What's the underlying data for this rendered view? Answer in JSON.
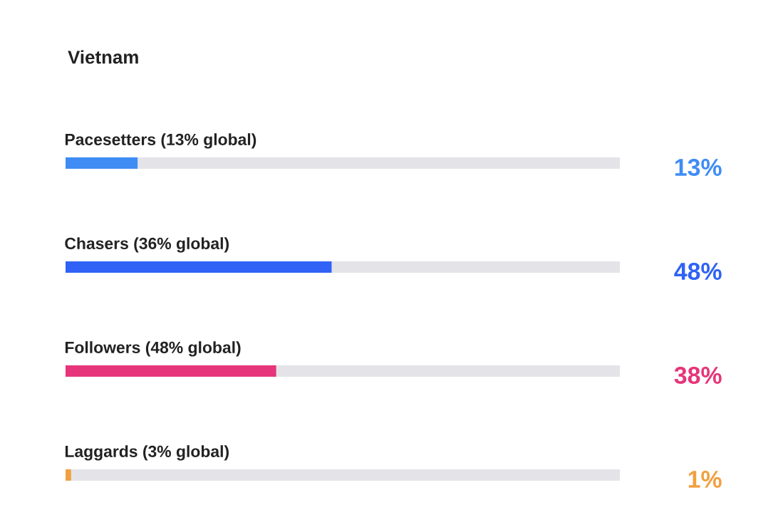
{
  "chart_data": {
    "type": "bar",
    "orientation": "horizontal",
    "title": "Vietnam",
    "categories": [
      "Pacesetters (13% global)",
      "Chasers (36% global)",
      "Followers (48% global)",
      "Laggards (3% global)"
    ],
    "values": [
      13,
      48,
      38,
      1
    ],
    "colors": [
      "#3f8cf5",
      "#2f62f5",
      "#e6357a",
      "#f0a040"
    ],
    "value_labels": [
      "13%",
      "48%",
      "38%",
      "1%"
    ],
    "xlim": [
      0,
      100
    ],
    "tick_labels": false
  }
}
